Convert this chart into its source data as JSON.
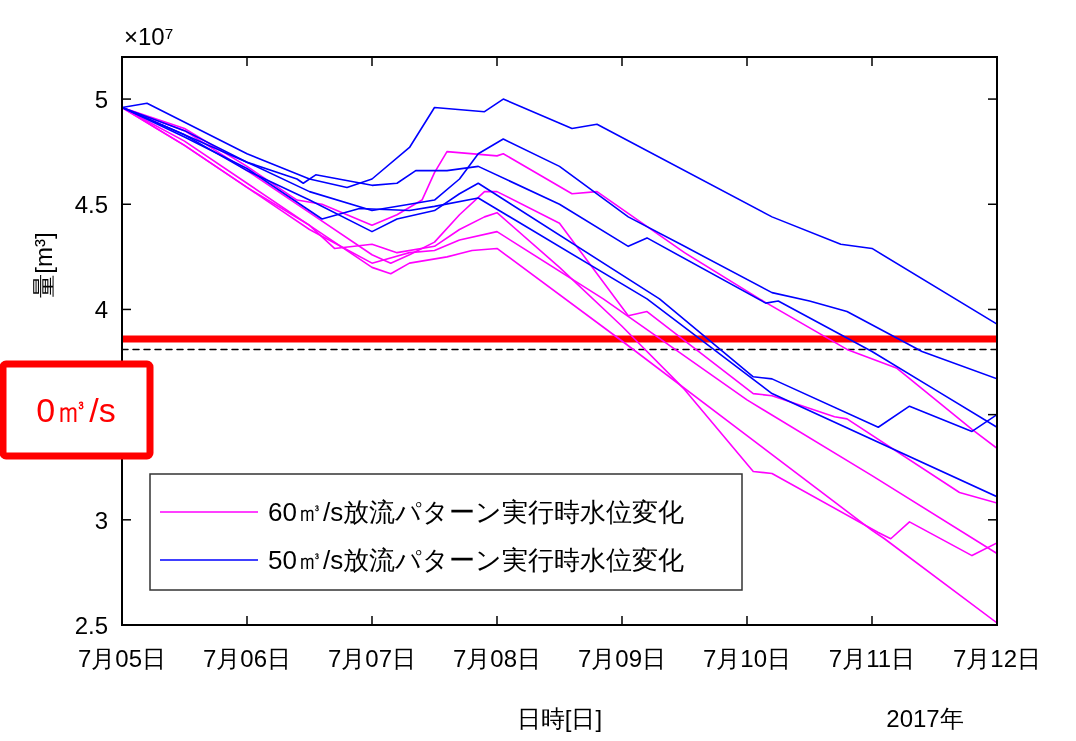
{
  "chart_data": {
    "type": "line",
    "xlabel": "日時[日]",
    "ylabel": "量[m³]",
    "annotations": [
      "×10⁷",
      "2017年",
      "0㎥/s"
    ],
    "xlim": [
      "2017-07-05",
      "2017-07-12"
    ],
    "xticks": [
      {
        "value": "2017-07-05",
        "label": "7月05日"
      },
      {
        "value": "2017-07-06",
        "label": "7月06日"
      },
      {
        "value": "2017-07-07",
        "label": "7月07日"
      },
      {
        "value": "2017-07-08",
        "label": "7月08日"
      },
      {
        "value": "2017-07-09",
        "label": "7月09日"
      },
      {
        "value": "2017-07-10",
        "label": "7月10日"
      },
      {
        "value": "2017-07-11",
        "label": "7月11日"
      },
      {
        "value": "2017-07-12",
        "label": "7月12日"
      }
    ],
    "ylim": [
      2.5,
      5.2
    ],
    "yticks": [
      2.5,
      3,
      {
        "value": 3.5,
        "label": null
      },
      4,
      4.5,
      5
    ],
    "legend": "bottom left",
    "ref_lines": [
      {
        "axis": "y",
        "value": 3.86,
        "color": "#ff0000",
        "line_style": "solid"
      },
      {
        "axis": "y",
        "value": 3.81,
        "color": "#000000",
        "line_style": "dashed"
      }
    ],
    "series": [
      {
        "name": "60㎥/s放流パターン実行時水位変化",
        "color": "#ff00ff",
        "x": [
          "2017-07-05T00:00",
          "2017-07-05T12:00",
          "2017-07-06T00:00",
          "2017-07-06T09:36",
          "2017-07-06T14:24",
          "2017-07-07T00:00",
          "2017-07-07T04:48",
          "2017-07-07T09:36",
          "2017-07-07T12:00",
          "2017-07-07T14:24",
          "2017-07-08T00:00",
          "2017-07-08T01:12",
          "2017-07-08T14:24",
          "2017-07-08T19:12",
          "2017-07-09T12:00",
          "2017-07-10T02:24",
          "2017-07-10T19:12",
          "2017-07-11T04:48",
          "2017-07-11T19:12",
          "2017-07-12T00:00"
        ],
        "values": [
          4.96,
          4.86,
          4.68,
          4.52,
          4.5,
          4.4,
          4.45,
          4.52,
          4.65,
          4.75,
          4.73,
          4.74,
          4.55,
          4.56,
          4.27,
          4.05,
          3.81,
          3.72,
          3.43,
          3.34
        ]
      },
      {
        "color": "#ff00ff",
        "x": [
          "2017-07-05T00:00",
          "2017-07-05T12:00",
          "2017-07-06T00:00",
          "2017-07-06T12:00",
          "2017-07-07T00:00",
          "2017-07-07T03:36",
          "2017-07-07T07:12",
          "2017-07-07T12:00",
          "2017-07-07T16:48",
          "2017-07-07T21:36",
          "2017-07-08T00:00",
          "2017-07-08T12:00",
          "2017-07-09T01:12",
          "2017-07-09T04:48",
          "2017-07-10T01:12",
          "2017-07-10T04:48",
          "2017-07-10T16:48",
          "2017-07-10T19:12",
          "2017-07-11T16:48",
          "2017-07-12T00:00"
        ],
        "values": [
          4.96,
          4.85,
          4.66,
          4.46,
          4.26,
          4.22,
          4.26,
          4.32,
          4.45,
          4.56,
          4.56,
          4.41,
          3.97,
          3.99,
          3.6,
          3.59,
          3.49,
          3.48,
          3.13,
          3.08
        ]
      },
      {
        "color": "#ff00ff",
        "x": [
          "2017-07-05T00:00",
          "2017-07-05T12:00",
          "2017-07-06T00:00",
          "2017-07-06T12:00",
          "2017-07-06T16:48",
          "2017-07-07T00:00",
          "2017-07-07T04:48",
          "2017-07-07T12:00",
          "2017-07-07T16:48",
          "2017-07-07T21:36",
          "2017-07-08T00:00",
          "2017-07-08T12:00",
          "2017-07-09T00:00",
          "2017-07-09T12:00",
          "2017-07-10T01:12",
          "2017-07-10T04:48",
          "2017-07-11T01:12",
          "2017-07-11T03:36",
          "2017-07-11T07:12",
          "2017-07-11T19:12",
          "2017-07-12T00:00"
        ],
        "values": [
          4.96,
          4.8,
          4.6,
          4.4,
          4.29,
          4.31,
          4.27,
          4.3,
          4.38,
          4.44,
          4.46,
          4.2,
          3.92,
          3.62,
          3.23,
          3.22,
          2.94,
          2.91,
          2.99,
          2.83,
          2.89
        ]
      },
      {
        "color": "#ff00ff",
        "x": [
          "2017-07-05T00:00",
          "2017-07-05T12:00",
          "2017-07-06T00:00",
          "2017-07-06T12:00",
          "2017-07-07T00:00",
          "2017-07-07T07:12",
          "2017-07-07T12:00",
          "2017-07-07T16:48",
          "2017-07-08T00:00",
          "2017-07-08T20:24",
          "2017-07-10T00:00",
          "2017-07-11T00:00",
          "2017-07-12T00:00"
        ],
        "values": [
          4.96,
          4.78,
          4.58,
          4.38,
          4.22,
          4.27,
          4.28,
          4.33,
          4.37,
          4.05,
          3.57,
          3.21,
          2.84
        ]
      },
      {
        "color": "#ff00ff",
        "x": [
          "2017-07-05T00:00",
          "2017-07-05T12:00",
          "2017-07-06T00:00",
          "2017-07-06T12:00",
          "2017-07-07T00:00",
          "2017-07-07T03:36",
          "2017-07-07T07:12",
          "2017-07-07T14:24",
          "2017-07-07T19:12",
          "2017-07-08T00:00",
          "2017-07-09T00:00",
          "2017-07-10T00:00",
          "2017-07-11T00:00",
          "2017-07-11T02:24",
          "2017-07-12T00:00"
        ],
        "values": [
          4.96,
          4.78,
          4.58,
          4.4,
          4.2,
          4.17,
          4.22,
          4.25,
          4.28,
          4.29,
          3.85,
          3.4,
          2.95,
          2.91,
          2.51
        ]
      },
      {
        "name": "50㎥/s放流パターン実行時水位変化",
        "color": "#0000ff",
        "x": [
          "2017-07-05T00:00",
          "2017-07-05T04:48",
          "2017-07-06T00:00",
          "2017-07-06T12:00",
          "2017-07-06T19:12",
          "2017-07-07T00:00",
          "2017-07-07T07:12",
          "2017-07-07T12:00",
          "2017-07-07T21:36",
          "2017-07-08T01:12",
          "2017-07-08T14:24",
          "2017-07-08T19:12",
          "2017-07-10T04:48",
          "2017-07-10T18:00",
          "2017-07-11T00:00",
          "2017-07-12T00:00"
        ],
        "values": [
          4.96,
          4.98,
          4.74,
          4.62,
          4.58,
          4.62,
          4.77,
          4.96,
          4.94,
          5.0,
          4.86,
          4.88,
          4.44,
          4.31,
          4.29,
          3.93
        ]
      },
      {
        "color": "#0000ff",
        "x": [
          "2017-07-05T00:00",
          "2017-07-05T12:00",
          "2017-07-06T00:00",
          "2017-07-06T12:00",
          "2017-07-07T00:00",
          "2017-07-07T07:12",
          "2017-07-07T12:00",
          "2017-07-07T16:48",
          "2017-07-07T20:24",
          "2017-07-08T01:12",
          "2017-07-08T12:00",
          "2017-07-09T01:12",
          "2017-07-09T12:00",
          "2017-07-10T04:48",
          "2017-07-10T12:00",
          "2017-07-10T19:12",
          "2017-07-11T09:36",
          "2017-07-12T00:00"
        ],
        "values": [
          4.96,
          4.83,
          4.7,
          4.56,
          4.47,
          4.5,
          4.52,
          4.62,
          4.74,
          4.81,
          4.68,
          4.44,
          4.3,
          4.08,
          4.04,
          3.99,
          3.8,
          3.67
        ]
      },
      {
        "color": "#0000ff",
        "x": [
          "2017-07-05T00:00",
          "2017-07-05T12:00",
          "2017-07-06T00:00",
          "2017-07-06T09:36",
          "2017-07-06T10:48",
          "2017-07-06T13:12",
          "2017-07-07T00:00",
          "2017-07-07T04:48",
          "2017-07-07T08:24",
          "2017-07-07T14:24",
          "2017-07-07T20:24",
          "2017-07-08T12:00",
          "2017-07-09T01:12",
          "2017-07-09T04:48",
          "2017-07-10T03:36",
          "2017-07-10T06:00",
          "2017-07-11T00:00",
          "2017-07-11T12:00",
          "2017-07-12T00:00"
        ],
        "values": [
          4.96,
          4.85,
          4.7,
          4.62,
          4.6,
          4.64,
          4.59,
          4.6,
          4.66,
          4.66,
          4.68,
          4.5,
          4.3,
          4.34,
          4.03,
          4.04,
          3.8,
          3.62,
          3.44
        ]
      },
      {
        "color": "#0000ff",
        "x": [
          "2017-07-05T00:00",
          "2017-07-05T12:00",
          "2017-07-06T00:00",
          "2017-07-06T12:00",
          "2017-07-07T00:00",
          "2017-07-07T04:48",
          "2017-07-07T12:00",
          "2017-07-07T16:48",
          "2017-07-07T20:24",
          "2017-07-09T07:12",
          "2017-07-10T01:12",
          "2017-07-10T04:48",
          "2017-07-11T01:12",
          "2017-07-11T07:12",
          "2017-07-11T19:12",
          "2017-07-12T00:00"
        ],
        "values": [
          4.96,
          4.83,
          4.66,
          4.52,
          4.37,
          4.43,
          4.47,
          4.55,
          4.6,
          4.05,
          3.68,
          3.67,
          3.44,
          3.54,
          3.42,
          3.5
        ]
      },
      {
        "color": "#0000ff",
        "x": [
          "2017-07-05T00:00",
          "2017-07-05T12:00",
          "2017-07-06T00:00",
          "2017-07-06T14:24",
          "2017-07-06T21:36",
          "2017-07-07T07:12",
          "2017-07-07T12:00",
          "2017-07-07T20:24",
          "2017-07-09T04:48",
          "2017-07-10T04:48",
          "2017-07-12T00:00"
        ],
        "values": [
          4.96,
          4.82,
          4.67,
          4.43,
          4.48,
          4.47,
          4.49,
          4.53,
          4.05,
          3.6,
          3.11
        ]
      }
    ]
  }
}
